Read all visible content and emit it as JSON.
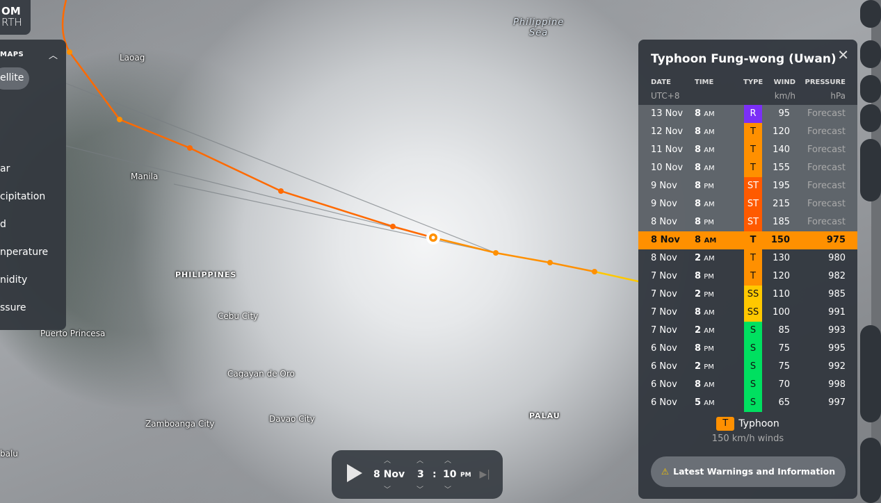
{
  "brand": {
    "line1": "OM",
    "line2": "RTH"
  },
  "map": {
    "labels": {
      "sea": "Philippine\nSea",
      "laoag": "Laoag",
      "manila": "Manila",
      "philippines": "PHILIPPINES",
      "cebu": "Cebu City",
      "puerto": "Puerto Princesa",
      "cagayan": "Cagayan de Oro",
      "zamboanga": "Zamboanga City",
      "davao": "Davao City",
      "palau": "PALAU",
      "balu": "balu"
    }
  },
  "maps_menu": {
    "heading": "MAPS",
    "selected": "ellite",
    "items": [
      "ar",
      "cipitation",
      "d",
      "nperature",
      "nidity",
      "ssure"
    ]
  },
  "storm": {
    "title": "Typhoon Fung-wong (Uwan)",
    "headers": {
      "date": "DATE",
      "date_unit": "UTC+8",
      "time": "TIME",
      "type": "TYPE",
      "wind": "WIND",
      "wind_unit": "km/h",
      "pressure": "PRESSURE",
      "pressure_unit": "hPa"
    },
    "type_colors": {
      "R": "#7b2ff7",
      "T": "#ff9000",
      "ST": "#ff5a00",
      "SS": "#ffc800",
      "S": "#00e060"
    },
    "rows": [
      {
        "date": "13 Nov",
        "hour": "8",
        "ampm": "AM",
        "type": "R",
        "wind": "95",
        "pressure": "Forecast",
        "forecast": true
      },
      {
        "date": "12 Nov",
        "hour": "8",
        "ampm": "AM",
        "type": "T",
        "wind": "120",
        "pressure": "Forecast",
        "forecast": true
      },
      {
        "date": "11 Nov",
        "hour": "8",
        "ampm": "AM",
        "type": "T",
        "wind": "140",
        "pressure": "Forecast",
        "forecast": true
      },
      {
        "date": "10 Nov",
        "hour": "8",
        "ampm": "AM",
        "type": "T",
        "wind": "155",
        "pressure": "Forecast",
        "forecast": true
      },
      {
        "date": "9 Nov",
        "hour": "8",
        "ampm": "PM",
        "type": "ST",
        "wind": "195",
        "pressure": "Forecast",
        "forecast": true
      },
      {
        "date": "9 Nov",
        "hour": "8",
        "ampm": "AM",
        "type": "ST",
        "wind": "215",
        "pressure": "Forecast",
        "forecast": true
      },
      {
        "date": "8 Nov",
        "hour": "8",
        "ampm": "PM",
        "type": "ST",
        "wind": "185",
        "pressure": "Forecast",
        "forecast": true
      },
      {
        "date": "8 Nov",
        "hour": "8",
        "ampm": "AM",
        "type": "T",
        "wind": "150",
        "pressure": "975",
        "current": true
      },
      {
        "date": "8 Nov",
        "hour": "2",
        "ampm": "AM",
        "type": "T",
        "wind": "130",
        "pressure": "980"
      },
      {
        "date": "7 Nov",
        "hour": "8",
        "ampm": "PM",
        "type": "T",
        "wind": "120",
        "pressure": "982"
      },
      {
        "date": "7 Nov",
        "hour": "2",
        "ampm": "PM",
        "type": "SS",
        "wind": "110",
        "pressure": "985"
      },
      {
        "date": "7 Nov",
        "hour": "8",
        "ampm": "AM",
        "type": "SS",
        "wind": "100",
        "pressure": "991"
      },
      {
        "date": "7 Nov",
        "hour": "2",
        "ampm": "AM",
        "type": "S",
        "wind": "85",
        "pressure": "993"
      },
      {
        "date": "6 Nov",
        "hour": "8",
        "ampm": "PM",
        "type": "S",
        "wind": "75",
        "pressure": "995"
      },
      {
        "date": "6 Nov",
        "hour": "2",
        "ampm": "PM",
        "type": "S",
        "wind": "75",
        "pressure": "992"
      },
      {
        "date": "6 Nov",
        "hour": "8",
        "ampm": "AM",
        "type": "S",
        "wind": "70",
        "pressure": "998"
      },
      {
        "date": "6 Nov",
        "hour": "5",
        "ampm": "AM",
        "type": "S",
        "wind": "65",
        "pressure": "997"
      }
    ],
    "category": {
      "badge": "T",
      "name": "Typhoon",
      "winds": "150 km/h winds"
    },
    "warnings_label": "Latest Warnings and Information"
  },
  "timeline": {
    "date": "8 Nov",
    "hour": "3",
    "minute": "10",
    "ampm": "PM"
  }
}
